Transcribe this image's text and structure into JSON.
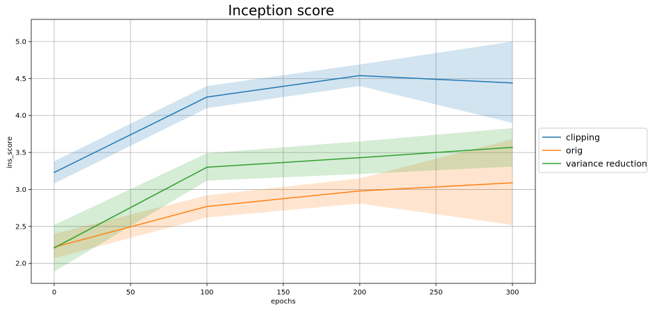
{
  "chart_data": {
    "type": "line",
    "title": "Inception score",
    "xlabel": "epochs",
    "ylabel": "ins_score",
    "x": [
      0,
      100,
      200,
      300
    ],
    "xlim": [
      -15,
      315
    ],
    "ylim": [
      1.73,
      5.3
    ],
    "xticks": [
      0,
      50,
      100,
      150,
      200,
      250,
      300
    ],
    "xtick_labels": [
      "0",
      "50",
      "100",
      "150",
      "200",
      "250",
      "300"
    ],
    "yticks": [
      2.0,
      2.5,
      3.0,
      3.5,
      4.0,
      4.5,
      5.0
    ],
    "ytick_labels": [
      "2.0",
      "2.5",
      "3.0",
      "3.5",
      "4.0",
      "4.5",
      "5.0"
    ],
    "grid": true,
    "legend_position": "right, outside plot",
    "series": [
      {
        "name": "clipping",
        "color": "#1f77b4",
        "values": [
          3.23,
          4.25,
          4.54,
          4.44
        ],
        "band_low": [
          3.08,
          4.1,
          4.4,
          3.9
        ],
        "band_high": [
          3.38,
          4.4,
          4.69,
          5.0
        ]
      },
      {
        "name": "orig",
        "color": "#ff7f0e",
        "values": [
          2.22,
          2.77,
          2.98,
          3.09
        ],
        "band_low": [
          2.07,
          2.62,
          2.81,
          2.52
        ],
        "band_high": [
          2.4,
          2.92,
          3.15,
          3.68
        ]
      },
      {
        "name": "variance reduction",
        "color": "#2ca02c",
        "values": [
          2.21,
          3.3,
          3.43,
          3.57
        ],
        "band_low": [
          1.89,
          3.12,
          3.21,
          3.31
        ],
        "band_high": [
          2.52,
          3.49,
          3.65,
          3.83
        ]
      }
    ]
  }
}
